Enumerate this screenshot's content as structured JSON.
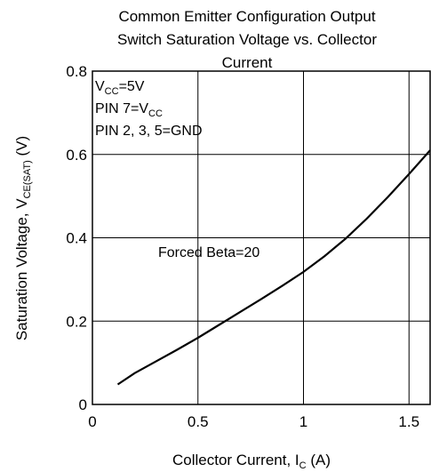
{
  "chart_data": {
    "type": "line",
    "title": [
      "Common Emitter Configuration Output",
      "Switch Saturation Voltage vs. Collector",
      "Current"
    ],
    "xlabel": {
      "main": "Collector Current, I",
      "sub": "C",
      "unit": " (A)"
    },
    "ylabel": {
      "main": "Saturation Voltage, V",
      "sub": "CE(SAT)",
      "unit": " (V)"
    },
    "xlim": [
      0,
      1.6
    ],
    "ylim": [
      0,
      0.8
    ],
    "xticks": [
      0,
      0.5,
      1,
      1.5
    ],
    "xtick_labels": [
      "0",
      "0.5",
      "1",
      "1.5"
    ],
    "yticks": [
      0,
      0.2,
      0.4,
      0.6,
      0.8
    ],
    "ytick_labels": [
      "0",
      "0.2",
      "0.4",
      "0.6",
      "0.8"
    ],
    "grid": true,
    "conditions": [
      {
        "main": "V",
        "sub": "CC",
        "rest": "=5V"
      },
      {
        "main": "PIN 7=V",
        "sub": "CC",
        "rest": ""
      },
      {
        "main": "PIN 2, 3, 5=GND",
        "sub": "",
        "rest": ""
      }
    ],
    "annotation": "Forced Beta=20",
    "series": [
      {
        "x": [
          0.12,
          0.2,
          0.3,
          0.4,
          0.5,
          0.6,
          0.7,
          0.8,
          0.9,
          1.0,
          1.1,
          1.2,
          1.3,
          1.4,
          1.5,
          1.6
        ],
        "y": [
          0.048,
          0.075,
          0.103,
          0.131,
          0.16,
          0.191,
          0.222,
          0.253,
          0.285,
          0.318,
          0.356,
          0.398,
          0.446,
          0.498,
          0.553,
          0.61
        ],
        "color": "#000000"
      }
    ]
  }
}
